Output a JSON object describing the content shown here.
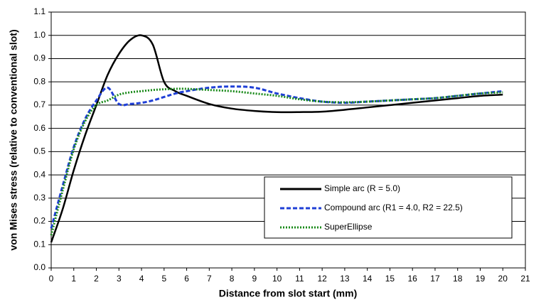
{
  "chart_data": {
    "type": "line",
    "x_label": "Distance from slot start (mm)",
    "y_label": "von Mises stress (relative to conventional slot)",
    "x": [
      0,
      0.5,
      1,
      1.5,
      2,
      2.5,
      3,
      3.5,
      4,
      4.5,
      5,
      5.5,
      6,
      7,
      8,
      9,
      10,
      11,
      12,
      13,
      14,
      15,
      16,
      17,
      18,
      19,
      20
    ],
    "series": [
      {
        "name": "Simple arc (R = 5.0)",
        "color": "#000000",
        "dash": "solid",
        "values": [
          0.11,
          0.25,
          0.42,
          0.57,
          0.7,
          0.83,
          0.92,
          0.98,
          1.0,
          0.96,
          0.8,
          0.76,
          0.74,
          0.705,
          0.685,
          0.675,
          0.67,
          0.67,
          0.672,
          0.68,
          0.69,
          0.7,
          0.71,
          0.72,
          0.73,
          0.74,
          0.745
        ]
      },
      {
        "name": "Compound arc (R1 = 4.0, R2 = 22.5)",
        "color": "#1f3fd6",
        "dash": "dashed",
        "values": [
          0.17,
          0.35,
          0.52,
          0.64,
          0.72,
          0.775,
          0.705,
          0.705,
          0.71,
          0.72,
          0.735,
          0.75,
          0.76,
          0.775,
          0.78,
          0.775,
          0.75,
          0.73,
          0.715,
          0.71,
          0.715,
          0.72,
          0.725,
          0.73,
          0.74,
          0.75,
          0.76
        ]
      },
      {
        "name": "SuperEllipse",
        "color": "#1a8a1a",
        "dash": "dotted",
        "values": [
          0.14,
          0.33,
          0.51,
          0.63,
          0.7,
          0.72,
          0.745,
          0.755,
          0.76,
          0.765,
          0.768,
          0.77,
          0.77,
          0.765,
          0.76,
          0.75,
          0.74,
          0.725,
          0.715,
          0.712,
          0.715,
          0.72,
          0.725,
          0.73,
          0.74,
          0.75,
          0.755
        ]
      }
    ],
    "xlim": [
      0,
      21
    ],
    "xticks": [
      0,
      1,
      2,
      3,
      4,
      5,
      6,
      7,
      8,
      9,
      10,
      11,
      12,
      13,
      14,
      15,
      16,
      17,
      18,
      19,
      20,
      21
    ],
    "ylim": [
      0,
      1.1
    ],
    "yticks": [
      {
        "value": 0,
        "label": "0.0"
      },
      0.1,
      0.2,
      0.3,
      0.4,
      0.5,
      0.6,
      0.7,
      0.8,
      0.9,
      {
        "value": 1,
        "label": "1.0"
      },
      1.1
    ],
    "grid": true,
    "legend": "lower right"
  }
}
